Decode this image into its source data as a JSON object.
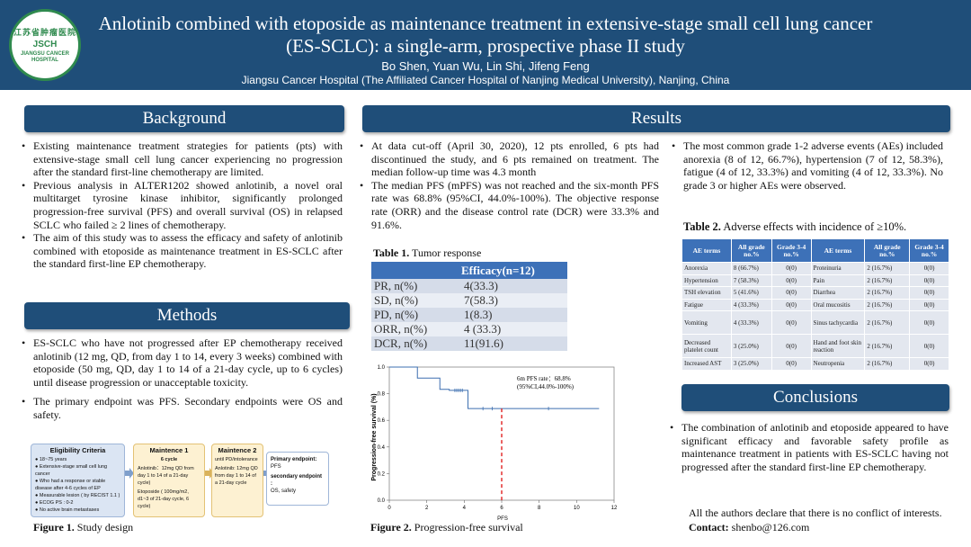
{
  "header": {
    "logo_cn": "江苏省肿瘤医院",
    "logo_abbr": "JSCH",
    "logo_en": "JIANGSU CANCER HOSPITAL",
    "title_line1": "Anlotinib combined with etoposide as maintenance treatment in extensive-stage small cell lung cancer",
    "title_line2": "(ES-SCLC): a single-arm, prospective phase II study",
    "authors": "Bo Shen, Yuan Wu, Lin Shi, Jifeng Feng",
    "affiliation": "Jiangsu Cancer Hospital (The Affiliated Cancer Hospital of Nanjing Medical University), Nanjing, China"
  },
  "background": {
    "heading": "Background",
    "bullets": [
      "Existing maintenance treatment strategies for patients (pts) with extensive-stage small cell lung cancer experiencing no progression after the standard first-line chemotherapy are limited.",
      "Previous analysis in ALTER1202 showed anlotinib, a novel oral multitarget tyrosine kinase inhibitor, significantly prolonged progression-free survival (PFS) and overall survival (OS) in relapsed SCLC who failed ≥ 2 lines of chemotherapy.",
      "The aim of this study was to assess the efficacy and safety of anlotinib combined with etoposide as maintenance treatment in ES-SCLC after the standard first-line EP chemotherapy."
    ]
  },
  "methods": {
    "heading": "Methods",
    "bullets": [
      "ES-SCLC who have not progressed after EP chemotherapy received anlotinib (12 mg, QD, from day 1 to 14, every 3 weeks) combined with etoposide (50 mg, QD, day 1 to 14 of a 21-day cycle, up to 6 cycles) until disease progression or unacceptable toxicity.",
      "The primary endpoint was PFS.  Secondary endpoints were OS and safety."
    ],
    "design": {
      "eligibility_title": "Eligibility Criteria",
      "eligibility_items": [
        "18~75 years",
        "Extensive-stage small cell lung cancer",
        "Who had a response or stable disease after 4-6 cycles of EP",
        "Measurable lesion ( by RECIST 1.1 )",
        "ECOG PS : 0-2",
        "No active brain metastases"
      ],
      "m1_title": "Maintence  1",
      "m1_cycle": "6 cycle",
      "m1_anlotinib": "Anlotinib：12mg QD from day 1 to 14 of a 21-day cycle)",
      "m1_etoposide": "Etoposide ( 100mg/m2, d1~3 of 21-day cycle, 6 cycle)",
      "m2_title": "Maintence  2",
      "m2_until": "until PD/intolerance",
      "m2_anlotinib": "Anlotinib: 12mg QD from day 1 to 14 of a 21-day cycle",
      "endpoint_primary": "Primary endpoint:",
      "endpoint_primary_value": "PFS",
      "endpoint_secondary": "secondary endpoint :",
      "endpoint_secondary_value": "OS, safety"
    },
    "figure_label": "Figure 1.",
    "figure_caption": "Study design"
  },
  "results": {
    "heading": "Results",
    "bullets_left": [
      "At data cut-off (April 30, 2020), 12 pts enrolled, 6 pts had discontinued the study, and 6 pts remained on treatment. The median follow-up time was 4.3 month",
      "The median PFS (mPFS) was not reached and the six-month PFS rate was 68.8% (95%CI, 44.0%-100%). The objective response rate (ORR) and the disease control rate (DCR) were 33.3% and 91.6%."
    ],
    "bullets_right": [
      "The most common grade 1-2 adverse events (AEs) included anorexia (8 of 12, 66.7%), hypertension (7 of 12, 58.3%), fatigue (4 of 12, 33.3%) and vomiting (4 of 12, 33.3%). No grade 3 or higher AEs were observed."
    ],
    "table1": {
      "label": "Table 1.",
      "caption": "Tumor response",
      "header": "Efficacy(n=12)",
      "rows": [
        [
          "PR, n(%)",
          "4(33.3)"
        ],
        [
          "SD, n(%)",
          "7(58.3)"
        ],
        [
          "PD, n(%)",
          "1(8.3)"
        ],
        [
          "ORR, n(%)",
          "4 (33.3)"
        ],
        [
          "DCR, n(%)",
          "11(91.6)"
        ]
      ]
    },
    "table2": {
      "label": "Table 2.",
      "caption": "Adverse effects with incidence of ≥10%.",
      "headers": [
        "AE terms",
        "All grade no.%",
        "Grade 3-4 no.%",
        "AE terms",
        "All grade no.%",
        "Grade 3-4 no.%"
      ],
      "rows": [
        [
          "Anorexia",
          "8 (66.7%)",
          "0(0)",
          "Proteinuria",
          "2 (16.7%)",
          "0(0)"
        ],
        [
          "Hypertension",
          "7 (58.3%)",
          "0(0)",
          "Pain",
          "2 (16.7%)",
          "0(0)"
        ],
        [
          "TSH elevation",
          "5 (41.6%)",
          "0(0)",
          "Diarrhea",
          "2 (16.7%)",
          "0(0)"
        ],
        [
          "Fatigue",
          "4 (33.3%)",
          "0(0)",
          "Oral mucositis",
          "2 (16.7%)",
          "0(0)"
        ],
        [
          "Vomiting",
          "4 (33.3%)",
          "0(0)",
          "Sinus tachycardia",
          "2 (16.7%)",
          "0(0)"
        ],
        [
          "Decreased platelet count",
          "3 (25.0%)",
          "0(0)",
          "Hand and foot skin reaction",
          "2 (16.7%)",
          "0(0)"
        ],
        [
          "Increased AST",
          "3 (25.0%)",
          "0(0)",
          "Neutropenia",
          "2 (16.7%)",
          "0(0)"
        ]
      ]
    },
    "figure_label": "Figure 2.",
    "figure_caption": "Progression-free survival"
  },
  "conclusions": {
    "heading": "Conclusions",
    "bullets": [
      "The combination of anlotinib and etoposide appeared to have significant efficacy and favorable safety profile as maintenance treatment in patients with ES-SCLC having not progressed after the standard first-line EP chemotherapy."
    ],
    "coi": "All the authors declare that there is no conflict of interests.",
    "contact_label": "Contact:",
    "contact_value": "shenbo@126.com"
  },
  "chart_data": {
    "type": "line",
    "title": "",
    "xlabel": "PFS",
    "ylabel": "Progression-free survival (%)",
    "xlim": [
      0,
      12
    ],
    "ylim": [
      0,
      1.0
    ],
    "x_ticks": [
      "0",
      "2",
      "4",
      "6",
      "8",
      "10",
      "12"
    ],
    "y_ticks": [
      "0.0",
      "0.2",
      "0.4",
      "0.6",
      "0.8",
      "1.0"
    ],
    "series": [
      {
        "name": "PFS",
        "x": [
          0,
          1.5,
          1.5,
          2.7,
          2.7,
          3.2,
          3.2,
          4.2,
          4.2,
          11.2
        ],
        "y": [
          1.0,
          1.0,
          0.917,
          0.917,
          0.833,
          0.833,
          0.825,
          0.825,
          0.688,
          0.688
        ]
      }
    ],
    "censor_x": [
      3.5,
      3.6,
      3.7,
      3.8,
      3.9,
      5.0,
      5.5,
      8.5
    ],
    "censor_y": [
      0.825,
      0.825,
      0.825,
      0.825,
      0.825,
      0.688,
      0.688,
      0.688
    ],
    "vline_x": 6,
    "annotation": "6m PFS rate：68.8%",
    "annotation2": "(95%CI,44.0%-100%)"
  }
}
